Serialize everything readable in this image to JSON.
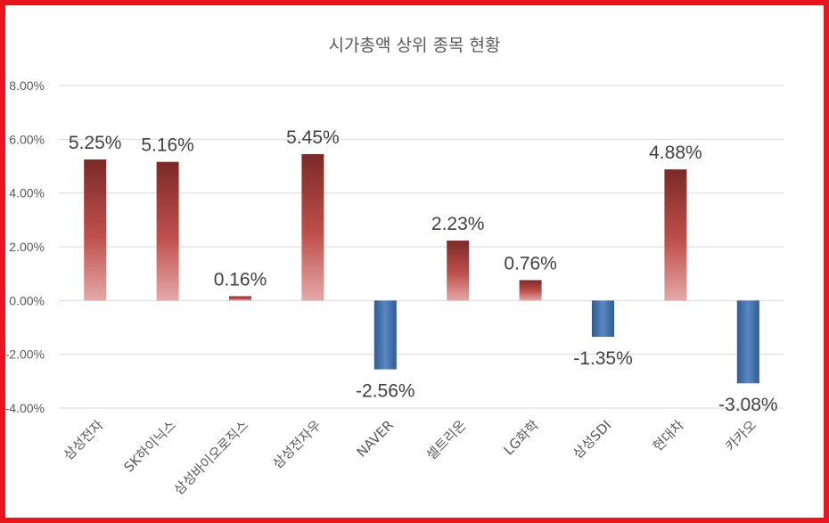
{
  "colors": {
    "frame": "#e8141e",
    "positive_dark": "#7b2a27",
    "positive_mid": "#c0504d",
    "positive_light": "#e3a9a7",
    "negative_dark": "#2f5b8f",
    "negative_light": "#5b87c4",
    "grid": "#d9d9d9",
    "text": "#595959"
  },
  "chart_data": {
    "type": "bar",
    "title": "시가총액 상위 종목  현황",
    "xlabel": "",
    "ylabel": "",
    "categories": [
      "삼성전자",
      "SK하이닉스",
      "삼성바이오로직스",
      "삼성전자우",
      "NAVER",
      "셀트리온",
      "LG화학",
      "삼성SDI",
      "현대차",
      "카카오"
    ],
    "values": [
      5.25,
      5.16,
      0.16,
      5.45,
      -2.56,
      2.23,
      0.76,
      -1.35,
      4.88,
      -3.08
    ],
    "data_labels": [
      "5.25%",
      "5.16%",
      "0.16%",
      "5.45%",
      "-2.56%",
      "2.23%",
      "0.76%",
      "-1.35%",
      "4.88%",
      "-3.08%"
    ],
    "ylim": [
      -4,
      8
    ],
    "yticks": [
      8,
      6,
      4,
      2,
      0,
      -2,
      -4
    ],
    "ytick_labels": [
      "8.00%",
      "6.00%",
      "4.00%",
      "2.00%",
      "0.00%",
      "-2.00%",
      "-4.00%"
    ],
    "grid": true,
    "legend": "none"
  }
}
